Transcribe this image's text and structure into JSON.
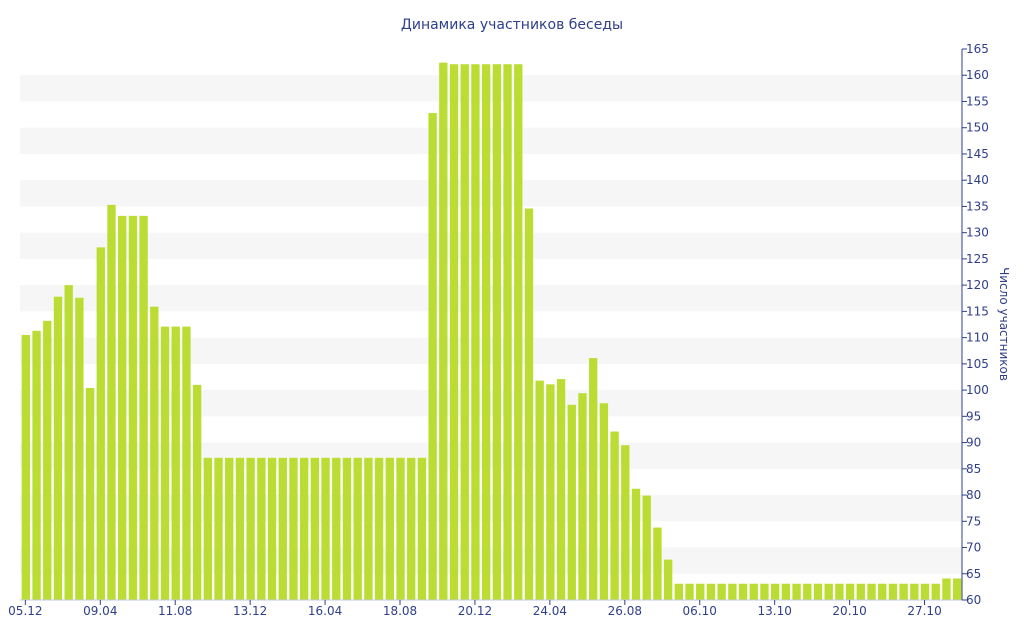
{
  "chart_data": {
    "type": "bar",
    "title": "Динамика участников беседы",
    "xlabel": "",
    "ylabel": "Число участников",
    "ylim": [
      60,
      165
    ],
    "y_ticks": [
      60,
      65,
      70,
      75,
      80,
      85,
      90,
      95,
      100,
      105,
      110,
      115,
      120,
      125,
      130,
      135,
      140,
      145,
      150,
      155,
      160,
      165
    ],
    "x_tick_labels": [
      {
        "index": 0,
        "label": "05.12"
      },
      {
        "index": 7,
        "label": "09.04"
      },
      {
        "index": 14,
        "label": "11.08"
      },
      {
        "index": 21,
        "label": "13.12"
      },
      {
        "index": 28,
        "label": "16.04"
      },
      {
        "index": 35,
        "label": "18.08"
      },
      {
        "index": 42,
        "label": "20.12"
      },
      {
        "index": 49,
        "label": "24.04"
      },
      {
        "index": 56,
        "label": "26.08"
      },
      {
        "index": 63,
        "label": "06.10"
      },
      {
        "index": 70,
        "label": "13.10"
      },
      {
        "index": 77,
        "label": "20.10"
      },
      {
        "index": 84,
        "label": "27.10"
      }
    ],
    "grid": "horizontal bands",
    "bar_color": "#bbdd33",
    "band_color": "#f6f6f6",
    "text_color": "#2f3f8a",
    "values": [
      110.5,
      111.3,
      113.2,
      117.8,
      120,
      117.6,
      100.4,
      127.2,
      135.3,
      133.2,
      133.2,
      133.2,
      115.9,
      112.1,
      112.1,
      112.1,
      101,
      87.1,
      87.1,
      87.1,
      87.1,
      87.1,
      87.1,
      87.1,
      87.1,
      87.1,
      87.1,
      87.1,
      87.1,
      87.1,
      87.1,
      87.1,
      87.1,
      87.1,
      87.1,
      87.1,
      87.1,
      87.1,
      152.8,
      162.4,
      162.1,
      162.1,
      162.1,
      162.1,
      162.1,
      162.1,
      162.1,
      134.6,
      101.8,
      101.1,
      102.1,
      97.2,
      99.4,
      106.1,
      97.5,
      92.1,
      89.5,
      81.2,
      79.9,
      73.8,
      67.7,
      63.1,
      63.1,
      63.1,
      63.1,
      63.1,
      63.1,
      63.1,
      63.1,
      63.1,
      63.1,
      63.1,
      63.1,
      63.1,
      63.1,
      63.1,
      63.1,
      63.1,
      63.1,
      63.1,
      63.1,
      63.1,
      63.1,
      63.1,
      63.1,
      63.1,
      64.1,
      64.1
    ]
  }
}
